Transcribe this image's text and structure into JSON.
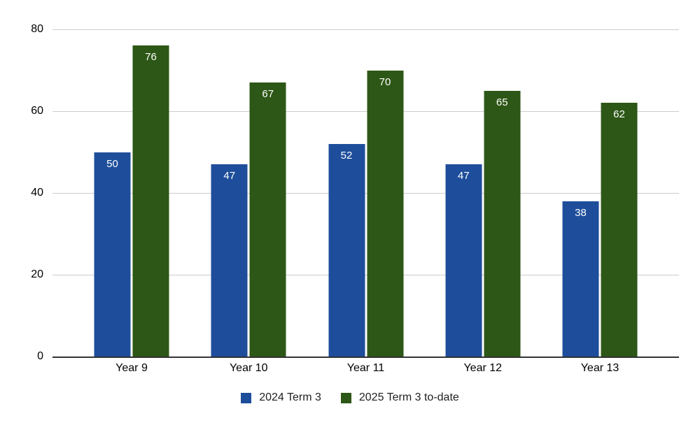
{
  "chart_data": {
    "type": "bar",
    "categories": [
      "Year 9",
      "Year 10",
      "Year 11",
      "Year 12",
      "Year 13"
    ],
    "series": [
      {
        "name": "2024 Term 3",
        "color": "#1e4e9b",
        "values": [
          50,
          47,
          52,
          47,
          38
        ]
      },
      {
        "name": "2025 Term 3 to-date",
        "color": "#2d5716",
        "values": [
          76,
          67,
          70,
          65,
          62
        ]
      }
    ],
    "title": "",
    "xlabel": "",
    "ylabel": "",
    "ylim": [
      0,
      80
    ],
    "yticks": [
      0,
      20,
      40,
      60,
      80
    ],
    "grid": true,
    "legend_position": "bottom",
    "bar_label_color": "#ffffff",
    "gridline_color": "#cccccc",
    "axis_line_color": "#333333",
    "tick_label_color": "#000000",
    "background": "#ffffff"
  }
}
